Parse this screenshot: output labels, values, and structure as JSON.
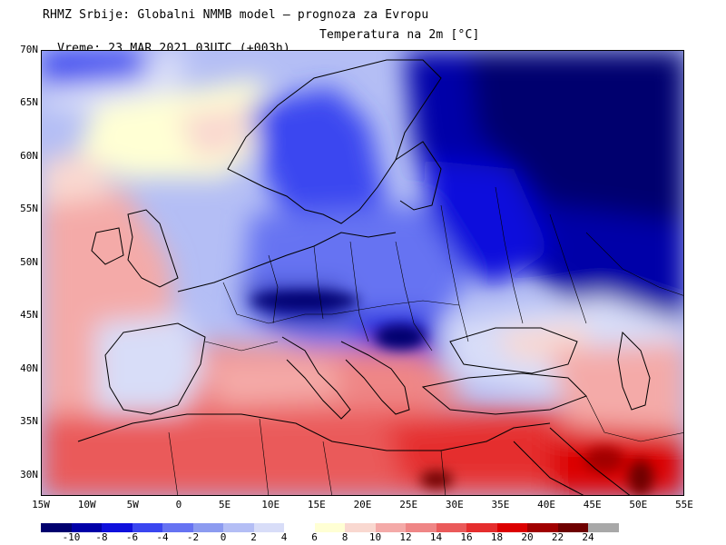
{
  "header": {
    "line1": "RHMZ Srbije: Globalni NMMB model — prognoza za Evropu",
    "line2": "Vreme: 23 MAR 2021 03UTC (+003h)",
    "field": "Temperatura na 2m [°C]"
  },
  "map": {
    "lon_range": [
      -15,
      55
    ],
    "lat_range": [
      28,
      70
    ],
    "latitude_labels": [
      "70N",
      "65N",
      "60N",
      "55N",
      "50N",
      "45N",
      "40N",
      "35N",
      "30N"
    ],
    "longitude_labels": [
      "15W",
      "10W",
      "5W",
      "0",
      "5E",
      "10E",
      "15E",
      "20E",
      "25E",
      "30E",
      "35E",
      "40E",
      "45E",
      "50E",
      "55E"
    ],
    "borders_color": "#000000"
  },
  "legend": {
    "labels": [
      "-10",
      "-8",
      "-6",
      "-4",
      "-2",
      "0",
      "2",
      "4",
      "6",
      "8",
      "10",
      "12",
      "14",
      "16",
      "18",
      "20",
      "22",
      "24"
    ],
    "colors": [
      "#00006e",
      "#0000a8",
      "#0f10dc",
      "#3a46f0",
      "#6673f2",
      "#8c9bf0",
      "#b4bef5",
      "#d8ddf8",
      "#ffffff",
      "#ffffd4",
      "#f9d8d0",
      "#f4aaa8",
      "#ef8686",
      "#ea5a5a",
      "#e52d2d",
      "#dc0000",
      "#a00000",
      "#6e0000",
      "#a8a8a8"
    ]
  }
}
